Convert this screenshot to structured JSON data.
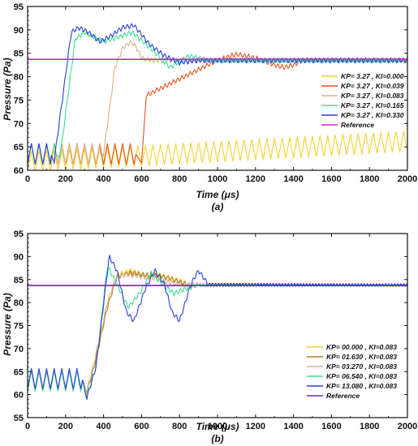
{
  "chart_data": [
    {
      "type": "line",
      "panel_label": "(a)",
      "xlabel": "Time (μs)",
      "ylabel": "Pressure (Pa)",
      "xlim": [
        0,
        2000
      ],
      "ylim": [
        60,
        95
      ],
      "xticks": [
        0,
        200,
        400,
        600,
        800,
        1000,
        1200,
        1400,
        1600,
        1800,
        2000
      ],
      "yticks": [
        60,
        65,
        70,
        75,
        80,
        85,
        90,
        95
      ],
      "legend_position": "right",
      "grid": false,
      "series": [
        {
          "name": "KP= 3.27  ,  KI=0.000",
          "color": "#f2d232",
          "x": [
            0,
            2000
          ],
          "y": [
            61.8,
            66.2
          ],
          "ripple": [
            [
              0,
              2000,
              40
            ]
          ]
        },
        {
          "name": "KP= 3.27  ,  KI=0.039",
          "color": "#e8531e",
          "x": [
            0,
            570,
            600,
            625,
            700,
            800,
            900,
            1000,
            1100,
            1200,
            1300,
            1350,
            1400,
            1450,
            1500,
            2000
          ],
          "y": [
            63.5,
            63.5,
            61.5,
            76,
            77.5,
            79.5,
            81.5,
            83.5,
            84.8,
            84,
            82.5,
            82,
            82.5,
            83.5,
            83.5,
            83.5
          ],
          "ripple": [
            [
              0,
              570,
              40
            ],
            [
              625,
              2000,
              22
            ]
          ]
        },
        {
          "name": "KP= 3.27  ,  KI=0.083",
          "color": "#d9b08c",
          "x": [
            0,
            380,
            400,
            460,
            500,
            540,
            570,
            600,
            650,
            2000
          ],
          "y": [
            63.5,
            63.5,
            63.5,
            82,
            86,
            87.4,
            86.5,
            84,
            83.5,
            83.5
          ],
          "ripple": [
            [
              0,
              380,
              40
            ],
            [
              400,
              2000,
              22
            ]
          ]
        },
        {
          "name": "KP= 3.27  ,  KI=0.165",
          "color": "#3be08e",
          "x": [
            0,
            150,
            170,
            250,
            300,
            400,
            480,
            550,
            650,
            750,
            850,
            950,
            2000
          ],
          "y": [
            63.5,
            63.5,
            62.5,
            88,
            89.5,
            87.5,
            88.5,
            89.5,
            86,
            82,
            84.5,
            83.5,
            83.5
          ],
          "ripple": [
            [
              0,
              150,
              40
            ],
            [
              170,
              2000,
              22
            ]
          ]
        },
        {
          "name": "KP= 3.27  ,  KI=0.330",
          "color": "#2a3fd6",
          "x": [
            0,
            120,
            140,
            230,
            270,
            320,
            380,
            430,
            500,
            560,
            640,
            720,
            800,
            900,
            2000
          ],
          "y": [
            63.5,
            63.5,
            62,
            89.5,
            90.5,
            89.5,
            87.5,
            88.5,
            90.5,
            91,
            87,
            84.5,
            83,
            83.5,
            83.5
          ],
          "ripple": [
            [
              0,
              120,
              40
            ],
            [
              140,
              2000,
              22
            ]
          ]
        },
        {
          "name": "Reference",
          "color": "#e020c8",
          "x": [
            0,
            2000
          ],
          "y": [
            83.7,
            83.7
          ],
          "ripple": []
        }
      ]
    },
    {
      "type": "line",
      "panel_label": "(b)",
      "xlabel": "Time (μs)",
      "ylabel": "Pressure (Pa)",
      "xlim": [
        0,
        2000
      ],
      "ylim": [
        55,
        95
      ],
      "xticks": [
        0,
        200,
        400,
        600,
        800,
        1000,
        1200,
        1400,
        1600,
        1800,
        2000
      ],
      "yticks": [
        55,
        60,
        65,
        70,
        75,
        80,
        85,
        90,
        95
      ],
      "legend_position": "bottom-right",
      "grid": false,
      "series": [
        {
          "name": "KP= 00.000  ,  KI=0.083",
          "color": "#f2d232",
          "x": [
            0,
            290,
            310,
            350,
            420,
            470,
            540,
            620,
            700,
            780,
            850,
            900,
            2000
          ],
          "y": [
            63,
            63,
            60,
            66,
            80,
            86,
            87,
            86,
            86,
            85,
            84,
            83.8,
            83.8
          ],
          "ripple": [
            [
              0,
              290,
              40
            ],
            [
              310,
              900,
              22
            ],
            [
              900,
              2000,
              16
            ]
          ]
        },
        {
          "name": "KP= 01.630  ,  KI=0.083",
          "color": "#b07a1e",
          "x": [
            0,
            290,
            310,
            350,
            420,
            470,
            540,
            620,
            700,
            780,
            850,
            900,
            2000
          ],
          "y": [
            63,
            63,
            60.5,
            66,
            79,
            85.5,
            86.5,
            86,
            85.8,
            84.8,
            83.8,
            83.8,
            83.8
          ],
          "ripple": [
            [
              0,
              290,
              40
            ],
            [
              310,
              900,
              22
            ],
            [
              900,
              2000,
              16
            ]
          ]
        },
        {
          "name": "KP= 03.270  ,  KI=0.083",
          "color": "#d9b08c",
          "x": [
            0,
            290,
            310,
            350,
            420,
            470,
            540,
            620,
            700,
            780,
            850,
            900,
            2000
          ],
          "y": [
            63,
            63,
            60.5,
            67,
            80,
            86,
            86,
            85.5,
            85,
            84,
            83.8,
            83.8,
            83.8
          ],
          "ripple": [
            [
              0,
              290,
              40
            ],
            [
              310,
              900,
              22
            ],
            [
              900,
              2000,
              16
            ]
          ]
        },
        {
          "name": "KP= 06.540  ,  KI=0.083",
          "color": "#3be08e",
          "x": [
            0,
            290,
            310,
            360,
            420,
            470,
            530,
            590,
            650,
            710,
            770,
            830,
            900,
            2000
          ],
          "y": [
            63,
            63,
            59.5,
            66,
            88,
            84,
            79,
            82,
            86.5,
            84,
            82,
            83,
            83.8,
            83.8
          ],
          "ripple": [
            [
              0,
              290,
              40
            ],
            [
              310,
              900,
              22
            ],
            [
              900,
              2000,
              16
            ]
          ]
        },
        {
          "name": "KP= 13.080  ,  KI=0.083",
          "color": "#2a3fd6",
          "x": [
            0,
            290,
            310,
            360,
            430,
            470,
            520,
            560,
            620,
            670,
            720,
            760,
            800,
            860,
            900,
            950,
            2000
          ],
          "y": [
            63.5,
            63.5,
            59,
            66,
            90,
            87,
            78,
            76,
            83,
            87,
            84,
            78,
            76,
            84,
            87,
            84,
            83.8
          ],
          "ripple": [
            [
              0,
              290,
              40
            ],
            [
              310,
              950,
              22
            ],
            [
              950,
              2000,
              16
            ]
          ]
        },
        {
          "name": "Reference",
          "color": "#7a1fb8",
          "x": [
            0,
            2000
          ],
          "y": [
            83.7,
            83.7
          ],
          "ripple": []
        }
      ]
    }
  ]
}
